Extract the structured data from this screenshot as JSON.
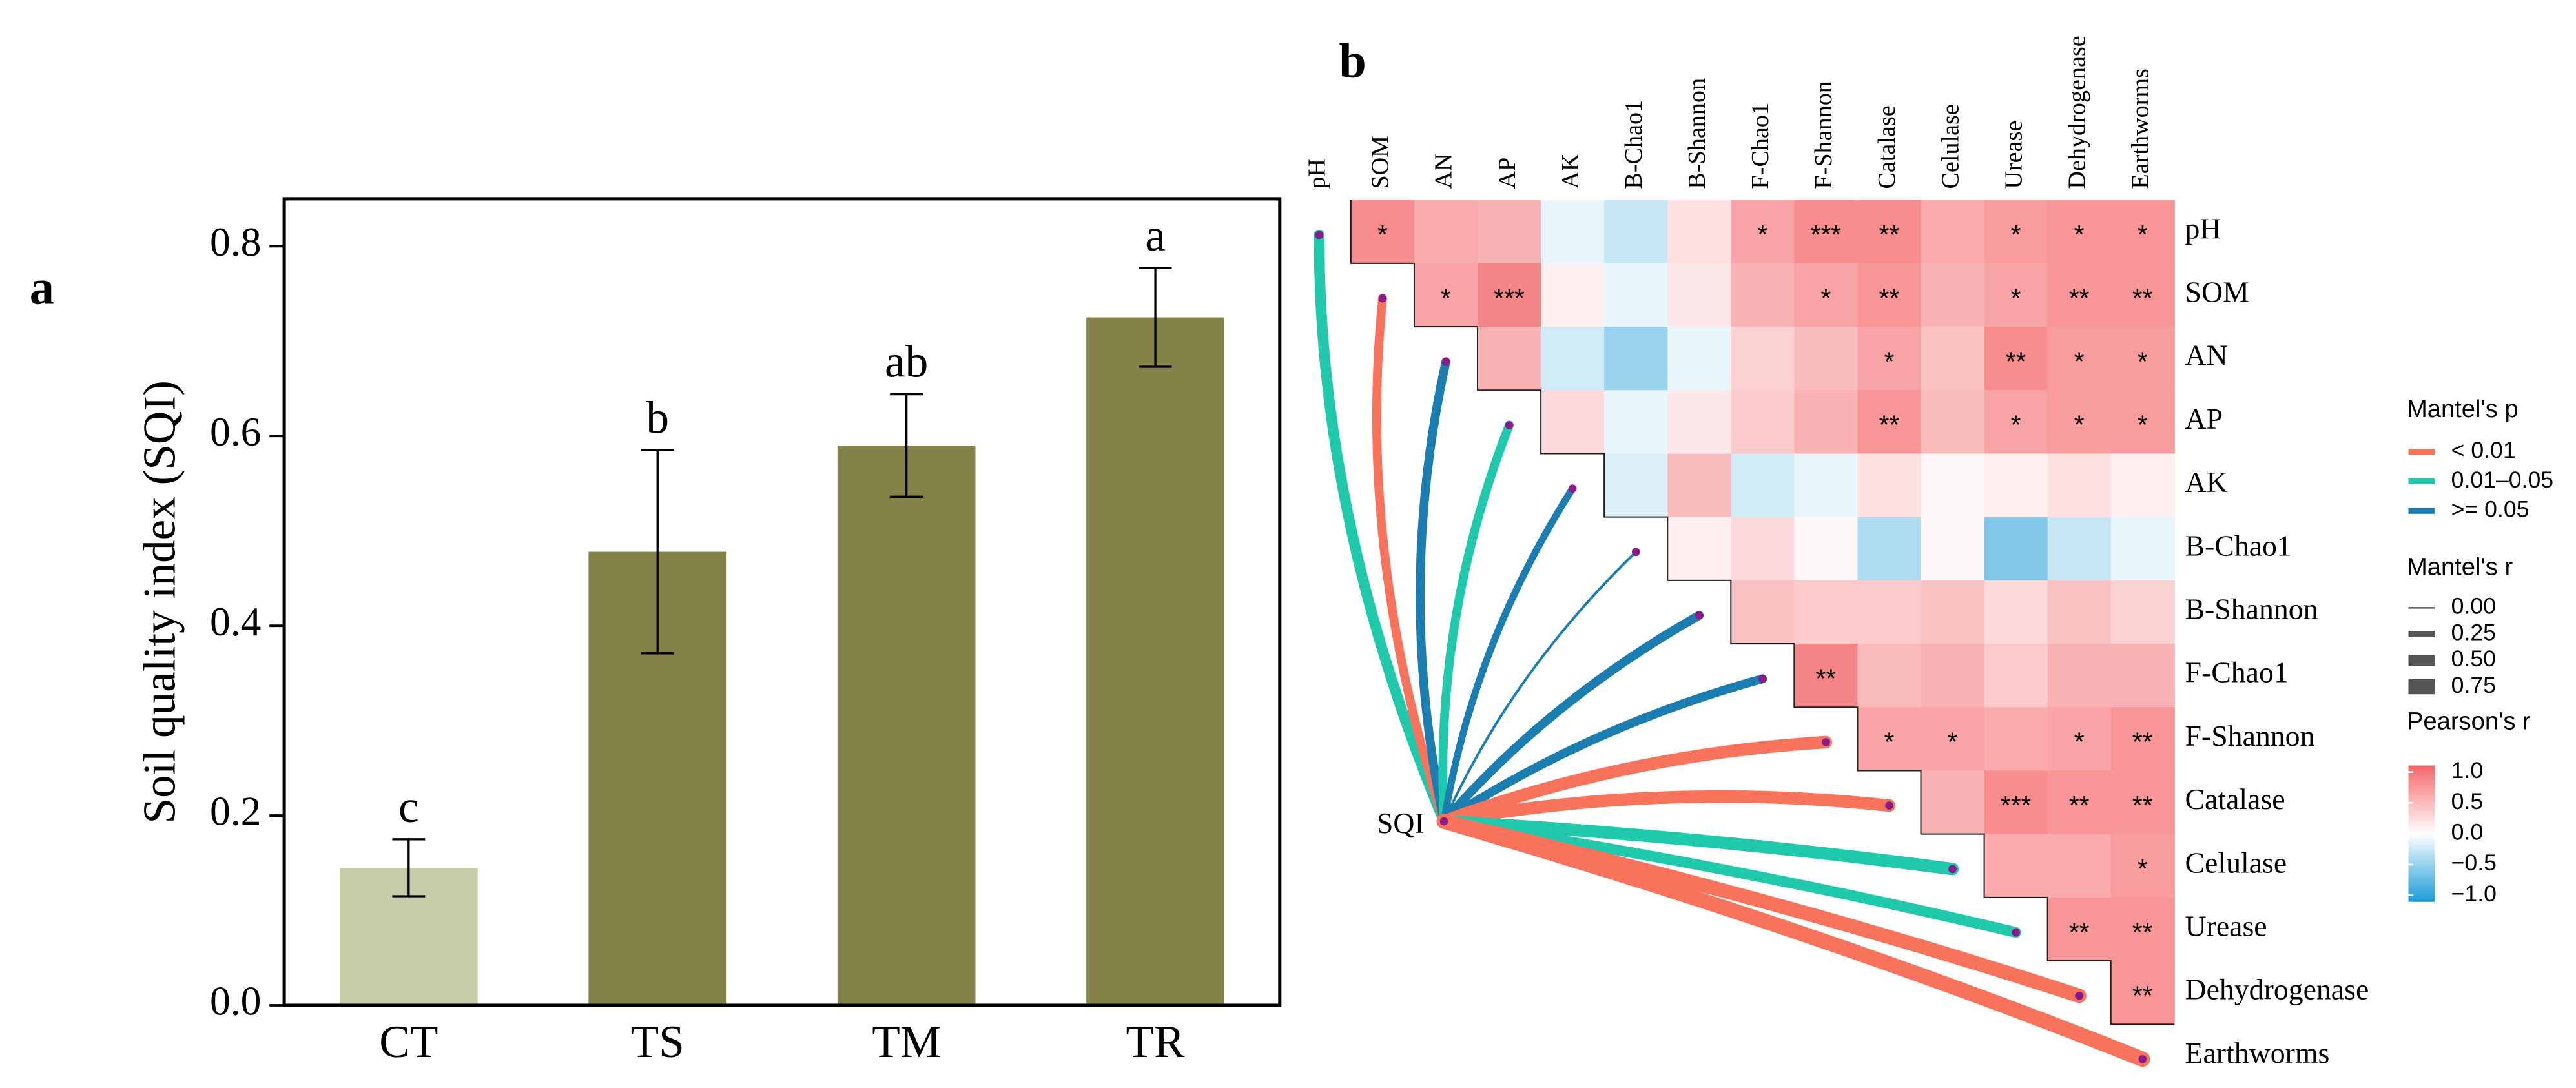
{
  "chart_data": [
    {
      "type": "bar",
      "panel_label": "a",
      "ylabel": "Soil quality index (SQI)",
      "categories": [
        "CT",
        "TS",
        "TM",
        "TR"
      ],
      "values": [
        0.145,
        0.478,
        0.59,
        0.725
      ],
      "errors": [
        0.03,
        0.107,
        0.054,
        0.052
      ],
      "letters": [
        "c",
        "b",
        "ab",
        "a"
      ],
      "colors": [
        "#c5cea8",
        "#848249",
        "#848249",
        "#848249"
      ],
      "ylim": [
        0,
        0.85
      ],
      "yticks": [
        {
          "value": 0,
          "label": "0.0"
        },
        {
          "value": 0.2,
          "label": "0.2"
        },
        {
          "value": 0.4,
          "label": "0.4"
        },
        {
          "value": 0.6,
          "label": "0.6"
        },
        {
          "value": 0.8,
          "label": "0.8"
        }
      ]
    },
    {
      "type": "heatmap",
      "panel_label": "b",
      "center_label": "SQI",
      "variables": [
        "pH",
        "SOM",
        "AN",
        "AP",
        "AK",
        "B-Chao1",
        "B-Shannon",
        "F-Chao1",
        "F-Shannon",
        "Catalase",
        "Celulase",
        "Urease",
        "Dehydrogenase",
        "Earthworms"
      ],
      "values": [
        [
          0.75,
          0.55,
          0.5,
          -0.1,
          -0.25,
          0.2,
          0.6,
          0.75,
          0.75,
          0.55,
          0.65,
          0.7,
          0.7
        ],
        [
          0.6,
          0.8,
          0.1,
          -0.1,
          0.15,
          0.5,
          0.6,
          0.7,
          0.5,
          0.6,
          0.7,
          0.7
        ],
        [
          0.5,
          -0.2,
          -0.45,
          -0.1,
          0.3,
          0.45,
          0.6,
          0.4,
          0.75,
          0.65,
          0.65
        ],
        [
          0.25,
          -0.1,
          0.15,
          0.35,
          0.5,
          0.7,
          0.45,
          0.6,
          0.65,
          0.65
        ],
        [
          -0.15,
          0.45,
          -0.2,
          -0.1,
          0.2,
          0.05,
          0.1,
          0.2,
          0.1
        ],
        [
          0.1,
          0.25,
          0.05,
          -0.35,
          0.05,
          -0.55,
          -0.25,
          -0.1
        ],
        [
          0.4,
          0.35,
          0.35,
          0.4,
          0.25,
          0.4,
          0.3
        ],
        [
          0.8,
          0.45,
          0.5,
          0.35,
          0.5,
          0.5
        ],
        [
          0.6,
          0.6,
          0.55,
          0.6,
          0.7
        ],
        [
          0.5,
          0.75,
          0.7,
          0.7
        ],
        [
          0.55,
          0.55,
          0.65
        ],
        [
          0.7,
          0.7
        ],
        [
          0.7
        ]
      ],
      "labels": [
        [
          "*",
          null,
          null,
          null,
          null,
          null,
          "*",
          "***",
          "**",
          null,
          "*",
          "*",
          "*"
        ],
        [
          "*",
          "***",
          null,
          null,
          null,
          null,
          "*",
          "**",
          null,
          "*",
          "**",
          "**"
        ],
        [
          null,
          null,
          null,
          null,
          null,
          null,
          "*",
          null,
          "**",
          "*",
          "*"
        ],
        [
          null,
          null,
          null,
          null,
          null,
          "**",
          null,
          "*",
          "*",
          "*"
        ],
        [
          null,
          null,
          null,
          null,
          null,
          null,
          null,
          null,
          null
        ],
        [
          null,
          null,
          null,
          null,
          null,
          null,
          null,
          null
        ],
        [
          null,
          null,
          null,
          null,
          null,
          null,
          null
        ],
        [
          "**",
          null,
          null,
          null,
          null,
          null
        ],
        [
          "*",
          "*",
          null,
          "*",
          "**"
        ],
        [
          null,
          "***",
          "**",
          "**"
        ],
        [
          null,
          null,
          "*"
        ],
        [
          "**",
          "**"
        ],
        [
          "**"
        ]
      ],
      "colorscale": [
        "#1a9bd7",
        "#ffffff",
        "#f4676a"
      ],
      "clim": [
        -1,
        1
      ],
      "legend_title": "Pearson's r",
      "cticks": [
        {
          "value": 1,
          "label": "1.0"
        },
        {
          "value": 0.5,
          "label": "0.5"
        },
        {
          "value": 0,
          "label": "0.0"
        },
        {
          "value": -0.5,
          "label": "−0.5"
        },
        {
          "value": -1,
          "label": "−1.0"
        }
      ],
      "mantel": {
        "r": [
          0.5,
          0.4,
          0.4,
          0.4,
          0.3,
          0.05,
          0.4,
          0.4,
          0.6,
          0.6,
          0.6,
          0.5,
          0.7,
          0.75
        ],
        "p_group": [
          1,
          0,
          2,
          1,
          2,
          2,
          2,
          2,
          0,
          0,
          1,
          1,
          0,
          0
        ],
        "p_title": "Mantel's p",
        "p_legend": [
          {
            "label": "< 0.01",
            "color": "#f8735c"
          },
          {
            "label": "0.01–0.05",
            "color": "#20c9ab"
          },
          {
            "label": ">= 0.05",
            "color": "#1b7db0"
          }
        ],
        "r_title": "Mantel's r",
        "r_ticks": [
          {
            "value": 0,
            "label": "0.00"
          },
          {
            "value": 0.25,
            "label": "0.25"
          },
          {
            "value": 0.5,
            "label": "0.50"
          },
          {
            "value": 0.75,
            "label": "0.75"
          }
        ]
      }
    }
  ]
}
